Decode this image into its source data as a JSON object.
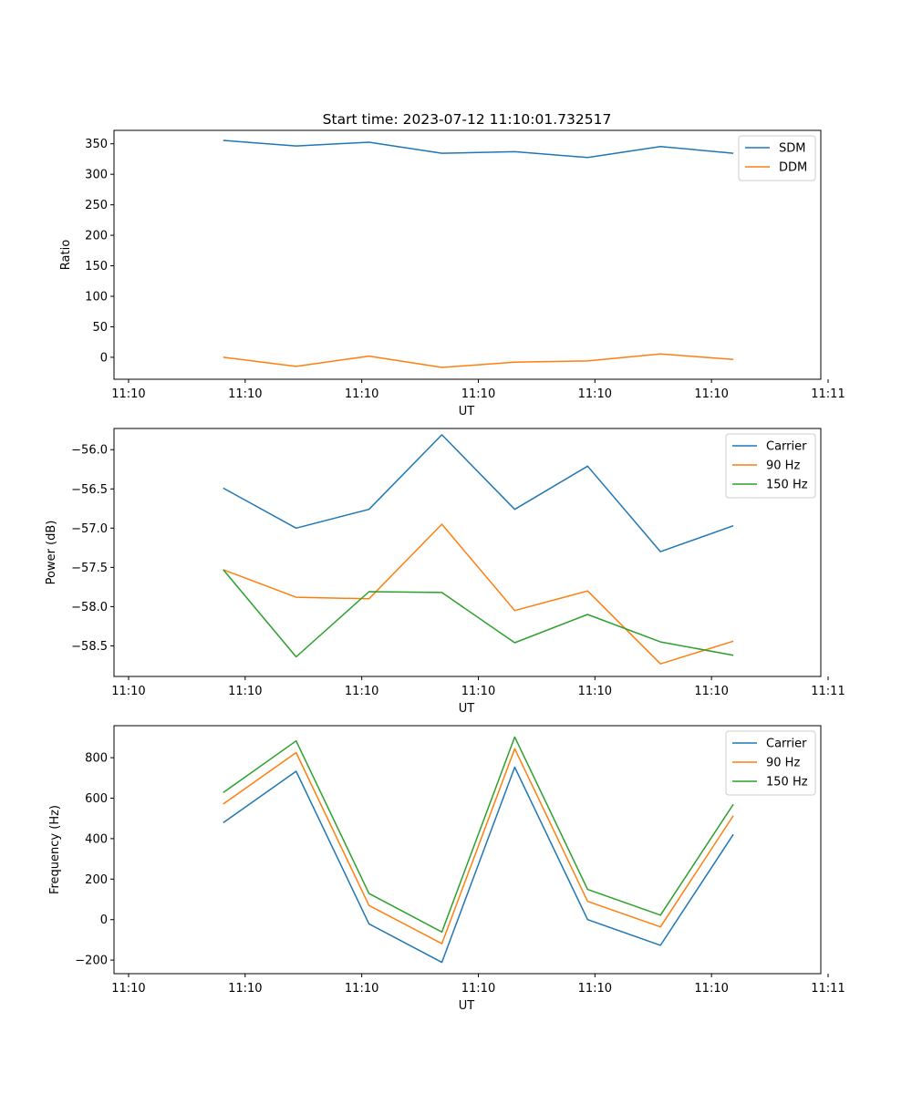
{
  "figure_title": "Start time: 2023-07-12 11:10:01.732517",
  "colors": {
    "blue": "#1f77b4",
    "orange": "#ff7f0e",
    "green": "#2ca02c"
  },
  "chart_data": [
    {
      "type": "line",
      "title": "Start time: 2023-07-12 11:10:01.732517",
      "xlabel": "UT",
      "ylabel": "Ratio",
      "xlim": [
        -0.5,
        9.2
      ],
      "x": [
        1,
        2,
        3,
        4,
        5,
        6,
        7,
        8
      ],
      "x_ticks": [
        -0.3,
        1.3,
        2.9,
        4.5,
        6.1,
        7.7,
        9.3
      ],
      "x_tick_labels": [
        "11:10",
        "11:10",
        "11:10",
        "11:10",
        "11:10",
        "11:10",
        "11:11"
      ],
      "ylim": [
        -36,
        372
      ],
      "y_ticks": [
        0,
        50,
        100,
        150,
        200,
        250,
        300,
        350
      ],
      "y_tick_labels": [
        "0",
        "50",
        "100",
        "150",
        "200",
        "250",
        "300",
        "350"
      ],
      "legend": "upper right",
      "series": [
        {
          "name": "SDM",
          "color": "#1f77b4",
          "values": [
            355.5,
            346.5,
            352.5,
            334.5,
            337,
            327.5,
            345.5,
            334.5
          ]
        },
        {
          "name": "DDM",
          "color": "#ff7f0e",
          "values": [
            0,
            -15,
            2,
            -16.5,
            -8,
            -6,
            5.5,
            -3.5
          ]
        }
      ]
    },
    {
      "type": "line",
      "title": "",
      "xlabel": "UT",
      "ylabel": "Power (dB)",
      "xlim": [
        -0.5,
        9.2
      ],
      "x": [
        1,
        2,
        3,
        4,
        5,
        6,
        7,
        8
      ],
      "x_ticks": [
        -0.3,
        1.3,
        2.9,
        4.5,
        6.1,
        7.7,
        9.3
      ],
      "x_tick_labels": [
        "11:10",
        "11:10",
        "11:10",
        "11:10",
        "11:10",
        "11:10",
        "11:11"
      ],
      "ylim": [
        -58.89,
        -55.73
      ],
      "y_ticks": [
        -58.5,
        -58.0,
        -57.5,
        -57.0,
        -56.5,
        -56.0
      ],
      "y_tick_labels": [
        "−58.5",
        "−58.0",
        "−57.5",
        "−57.0",
        "−56.5",
        "−56.0"
      ],
      "legend": "upper right",
      "series": [
        {
          "name": "Carrier",
          "color": "#1f77b4",
          "values": [
            -56.49,
            -57.0,
            -56.76,
            -55.81,
            -56.76,
            -56.21,
            -57.3,
            -56.97
          ]
        },
        {
          "name": "90 Hz",
          "color": "#ff7f0e",
          "values": [
            -57.53,
            -57.88,
            -57.9,
            -56.95,
            -58.05,
            -57.8,
            -58.73,
            -58.44
          ]
        },
        {
          "name": "150 Hz",
          "color": "#2ca02c",
          "values": [
            -57.53,
            -58.64,
            -57.81,
            -57.82,
            -58.46,
            -58.1,
            -58.45,
            -58.62
          ]
        }
      ]
    },
    {
      "type": "line",
      "title": "",
      "xlabel": "UT",
      "ylabel": "Frequency (Hz)",
      "xlim": [
        -0.5,
        9.2
      ],
      "x": [
        1,
        2,
        3,
        4,
        5,
        6,
        7,
        8
      ],
      "x_ticks": [
        -0.3,
        1.3,
        2.9,
        4.5,
        6.1,
        7.7,
        9.3
      ],
      "x_tick_labels": [
        "11:10",
        "11:10",
        "11:10",
        "11:10",
        "11:10",
        "11:10",
        "11:11"
      ],
      "ylim": [
        -267,
        958
      ],
      "y_ticks": [
        -200,
        0,
        200,
        400,
        600,
        800
      ],
      "y_tick_labels": [
        "−200",
        "0",
        "200",
        "400",
        "600",
        "800"
      ],
      "legend": "upper right",
      "series": [
        {
          "name": "Carrier",
          "color": "#1f77b4",
          "values": [
            479,
            733,
            -21,
            -211,
            753,
            0,
            -127,
            421
          ]
        },
        {
          "name": "90 Hz",
          "color": "#ff7f0e",
          "values": [
            571,
            825,
            70,
            -119,
            844,
            90,
            -36,
            514
          ]
        },
        {
          "name": "150 Hz",
          "color": "#2ca02c",
          "values": [
            628,
            883,
            129,
            -61,
            902,
            149,
            22,
            570
          ]
        }
      ]
    }
  ]
}
